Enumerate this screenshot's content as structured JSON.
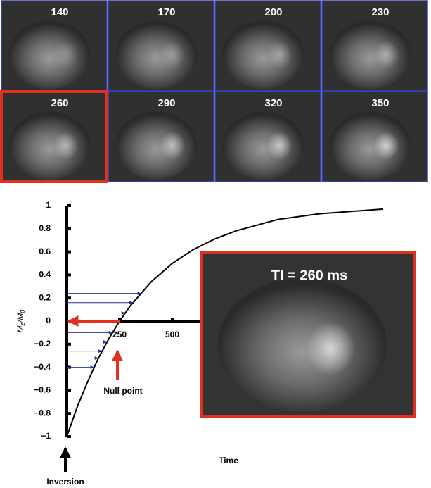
{
  "panels": {
    "labels": [
      "140",
      "170",
      "200",
      "230",
      "260",
      "290",
      "320",
      "350"
    ],
    "highlighted": 4
  },
  "inset": {
    "text": "TI = 260 ms"
  },
  "chart_data": {
    "type": "line",
    "ylabel": [
      "M",
      "z",
      "/M",
      "0"
    ],
    "xlabel": "Time",
    "x": [
      0,
      50,
      100,
      150,
      200,
      250,
      300,
      400,
      500,
      600,
      700,
      800,
      1000,
      1200,
      1500
    ],
    "values": [
      -1,
      -0.74,
      -0.52,
      -0.32,
      -0.15,
      0,
      0.13,
      0.34,
      0.5,
      0.62,
      0.71,
      0.78,
      0.88,
      0.93,
      0.97
    ],
    "color": "#000000",
    "xlim": [
      0,
      1500
    ],
    "xticks": [
      250,
      500
    ],
    "ylim": [
      -1,
      1
    ],
    "yticks": [
      {
        "value": -1,
        "label": "−1"
      },
      {
        "value": -0.8,
        "label": "−0.8"
      },
      {
        "value": -0.6,
        "label": "−0.6"
      },
      {
        "value": -0.4,
        "label": "−0.4"
      },
      {
        "value": -0.2,
        "label": "−0.2"
      },
      0,
      0.2,
      0.4,
      0.6,
      0.8,
      1
    ],
    "arrow_levels": [
      0.24,
      0.16,
      0.07,
      -0.1,
      -0.18,
      -0.26,
      -0.32,
      -0.4
    ],
    "arrow_color": "#2233aa",
    "null_point": {
      "value": 250,
      "label": "Null point",
      "color": "#e03020"
    },
    "inversion_label": "Inversion"
  }
}
